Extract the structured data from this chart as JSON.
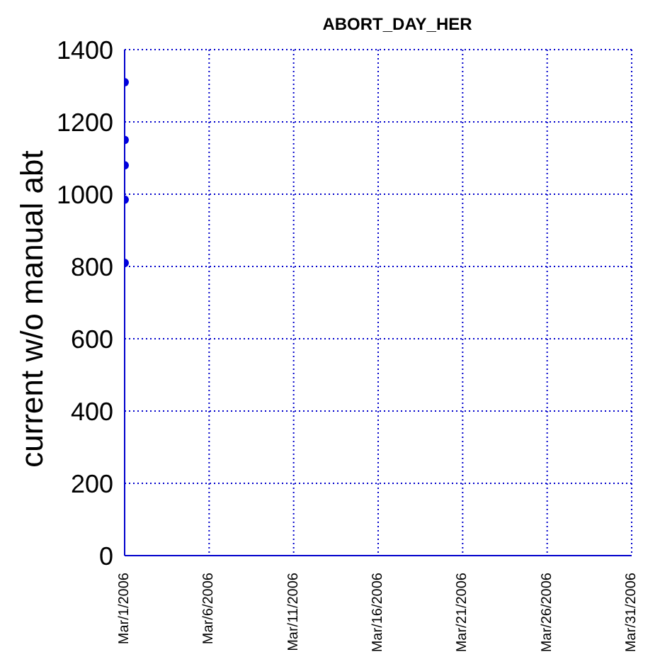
{
  "chart_data": {
    "type": "scatter",
    "title": "ABORT_DAY_HER",
    "ylabel": "current w/o manual abt",
    "x": [
      "2006-03-01",
      "2006-03-01",
      "2006-03-01",
      "2006-03-01",
      "2006-03-01"
    ],
    "series": [
      {
        "color": "#0000dd",
        "values": [
          1310,
          1150,
          1080,
          985,
          810
        ]
      }
    ],
    "xlim": [
      "2006-03-01",
      "2006-03-31"
    ],
    "xticks": [
      {
        "value": "2006-03-01",
        "label": "Mar/1/2006"
      },
      {
        "value": "2006-03-06",
        "label": "Mar/6/2006"
      },
      {
        "value": "2006-03-11",
        "label": "Mar/11/2006"
      },
      {
        "value": "2006-03-16",
        "label": "Mar/16/2006"
      },
      {
        "value": "2006-03-21",
        "label": "Mar/21/2006"
      },
      {
        "value": "2006-03-26",
        "label": "Mar/26/2006"
      },
      {
        "value": "2006-03-31",
        "label": "Mar/31/2006"
      }
    ],
    "ylim": [
      0,
      1400
    ],
    "yticks": [
      0,
      200,
      400,
      600,
      800,
      1000,
      1200,
      1400
    ],
    "grid": true,
    "marker": "circle"
  }
}
